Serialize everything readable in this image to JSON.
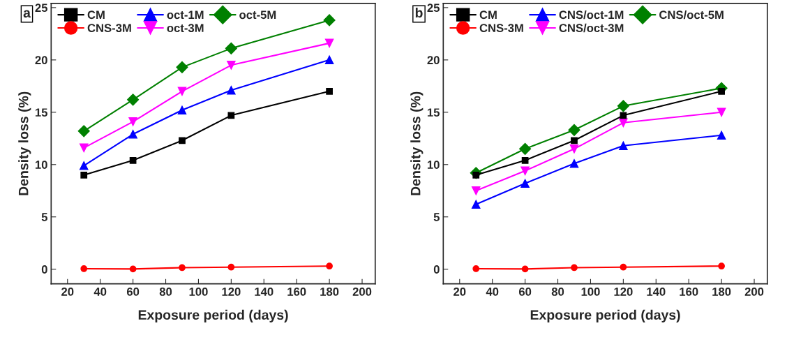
{
  "chart_data": [
    {
      "type": "line",
      "xlabel": "Exposure period (days)",
      "ylabel": "Density loss (%)",
      "annotations": [
        "a"
      ],
      "x": [
        30,
        60,
        90,
        120,
        180
      ],
      "xlim": [
        10,
        208
      ],
      "xticks": [
        20,
        40,
        60,
        80,
        100,
        120,
        140,
        160,
        180,
        200
      ],
      "ylim": [
        -1.4,
        25.4
      ],
      "yticks": [
        0,
        5,
        10,
        15,
        20,
        25
      ],
      "legend": "top left",
      "grid": false,
      "series": [
        {
          "name": "CM",
          "color": "#000000",
          "marker": "square",
          "values": [
            9.0,
            10.4,
            12.3,
            14.7,
            17.0
          ]
        },
        {
          "name": "CNS-3M",
          "color": "#ff0000",
          "marker": "circle",
          "values": [
            0.05,
            0.02,
            0.15,
            0.2,
            0.3
          ]
        },
        {
          "name": "oct-1M",
          "color": "#0000ff",
          "marker": "triangle",
          "values": [
            9.9,
            12.9,
            15.2,
            17.1,
            20.0
          ]
        },
        {
          "name": "oct-3M",
          "color": "#ff00ff",
          "marker": "triangle_down",
          "values": [
            11.6,
            14.1,
            17.0,
            19.5,
            21.6
          ]
        },
        {
          "name": "oct-5M",
          "color": "#008000",
          "marker": "diamond",
          "values": [
            13.2,
            16.2,
            19.3,
            21.1,
            23.8
          ]
        }
      ]
    },
    {
      "type": "line",
      "xlabel": "Exposure period (days)",
      "ylabel": "Density loss (%)",
      "annotations": [
        "b"
      ],
      "x": [
        30,
        60,
        90,
        120,
        180
      ],
      "xlim": [
        10,
        208
      ],
      "xticks": [
        20,
        40,
        60,
        80,
        100,
        120,
        140,
        160,
        180,
        200
      ],
      "ylim": [
        -1.4,
        25.4
      ],
      "yticks": [
        0,
        5,
        10,
        15,
        20,
        25
      ],
      "legend": "top left",
      "grid": false,
      "series": [
        {
          "name": "CM",
          "color": "#000000",
          "marker": "square",
          "values": [
            9.0,
            10.4,
            12.3,
            14.7,
            17.0
          ]
        },
        {
          "name": "CNS-3M",
          "color": "#ff0000",
          "marker": "circle",
          "values": [
            0.05,
            0.02,
            0.15,
            0.2,
            0.3
          ]
        },
        {
          "name": "CNS/oct-1M",
          "color": "#0000ff",
          "marker": "triangle",
          "values": [
            6.2,
            8.2,
            10.1,
            11.8,
            12.8
          ]
        },
        {
          "name": "CNS/oct-3M",
          "color": "#ff00ff",
          "marker": "triangle_down",
          "values": [
            7.5,
            9.4,
            11.5,
            14.0,
            15.0
          ]
        },
        {
          "name": "CNS/oct-5M",
          "color": "#008000",
          "marker": "diamond",
          "values": [
            9.2,
            11.5,
            13.3,
            15.6,
            17.3
          ]
        }
      ]
    }
  ]
}
